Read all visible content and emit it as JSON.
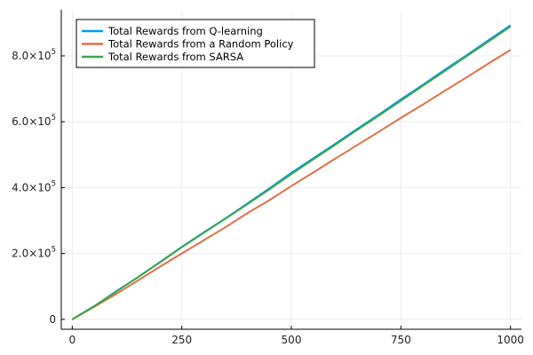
{
  "chart_data": {
    "type": "line",
    "title": "",
    "xlabel": "",
    "ylabel": "",
    "xlim": [
      -25,
      1025
    ],
    "ylim": [
      -30000,
      940000
    ],
    "grid": true,
    "legend_position": "top-left",
    "x_ticks": [
      {
        "value": 0,
        "label": "0"
      },
      {
        "value": 250,
        "label": "250"
      },
      {
        "value": 500,
        "label": "500"
      },
      {
        "value": 750,
        "label": "750"
      },
      {
        "value": 1000,
        "label": "1000"
      }
    ],
    "y_ticks": [
      {
        "value": 0,
        "mantissa": "0",
        "exp": ""
      },
      {
        "value": 200000,
        "mantissa": "2.0×10",
        "exp": "5"
      },
      {
        "value": 400000,
        "mantissa": "4.0×10",
        "exp": "5"
      },
      {
        "value": 600000,
        "mantissa": "6.0×10",
        "exp": "5"
      },
      {
        "value": 800000,
        "mantissa": "8.0×10",
        "exp": "5"
      }
    ],
    "x": [
      0,
      50,
      100,
      150,
      200,
      250,
      300,
      350,
      400,
      450,
      500,
      550,
      600,
      650,
      700,
      750,
      800,
      850,
      900,
      950,
      1000
    ],
    "series": [
      {
        "name": "Total Rewards from Q-learning",
        "color": "#009af9",
        "values": [
          0,
          40000,
          85000,
          128000,
          174000,
          220000,
          264000,
          307000,
          352000,
          398000,
          445000,
          489000,
          533000,
          578000,
          622000,
          668000,
          712000,
          758000,
          802000,
          848000,
          893000
        ]
      },
      {
        "name": "Total Rewards from a Random Policy",
        "color": "#e26f46",
        "values": [
          0,
          38000,
          77000,
          118000,
          160000,
          200000,
          240000,
          280000,
          323000,
          362000,
          405000,
          446000,
          488000,
          529000,
          570000,
          612000,
          652000,
          694000,
          735000,
          777000,
          818000
        ]
      },
      {
        "name": "Total Rewards from SARSA",
        "color": "#3da44d",
        "values": [
          0,
          40000,
          84000,
          128000,
          173000,
          219000,
          263000,
          306000,
          350000,
          395000,
          441000,
          486000,
          530000,
          575000,
          619000,
          664000,
          709000,
          754000,
          799000,
          844000,
          889000
        ]
      }
    ]
  }
}
